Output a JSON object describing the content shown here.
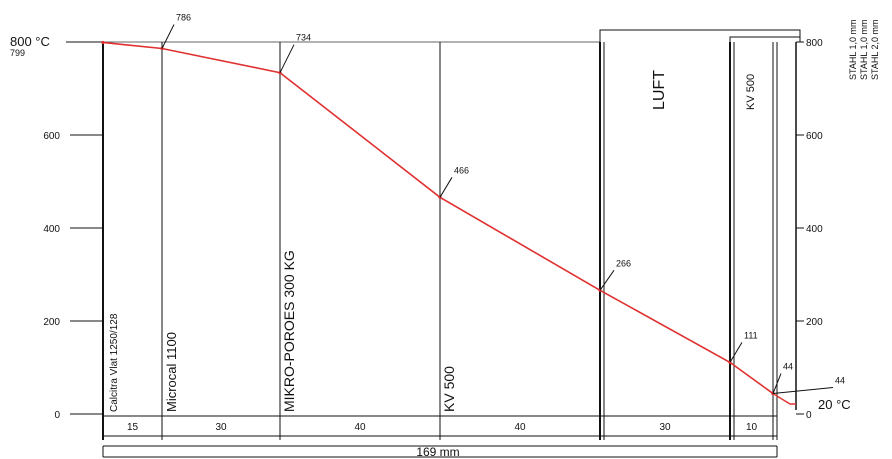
{
  "chart_data": {
    "type": "line",
    "y_axis": {
      "range": [
        0,
        800
      ],
      "ticks": [
        "0",
        "200",
        "400",
        "600"
      ],
      "right_ticks": [
        "0",
        "200",
        "400",
        "600",
        "800"
      ]
    },
    "hot_side_label": "800 °C",
    "cold_side_label": "20 °C",
    "total_length_label": "169 mm",
    "layers": [
      {
        "name": "Calcitra Vlat 1250/128",
        "thickness": "15"
      },
      {
        "name": "Microcal 1100",
        "thickness": "30"
      },
      {
        "name": "MIKRO-POROES 300 KG",
        "thickness": "40"
      },
      {
        "name": "KV 500",
        "thickness": "40"
      },
      {
        "name": "LUFT",
        "thickness": "30"
      },
      {
        "name": "KV 500",
        "thickness": "10"
      }
    ],
    "steel_layers": [
      "STAHL 1,0 mm",
      "STAHL 1,0 mm",
      "STAHL 2,0 mm"
    ],
    "series": [
      {
        "x": [
          0,
          15,
          45,
          85,
          125,
          155,
          165,
          169
        ],
        "y": [
          799,
          786,
          734,
          466,
          266,
          111,
          44,
          44
        ]
      }
    ],
    "point_labels": [
      "799",
      "786",
      "734",
      "466",
      "266",
      "111",
      "44",
      "44"
    ]
  },
  "colors": {
    "curve": "#e03030",
    "line": "#111111",
    "guide": "#666666"
  }
}
